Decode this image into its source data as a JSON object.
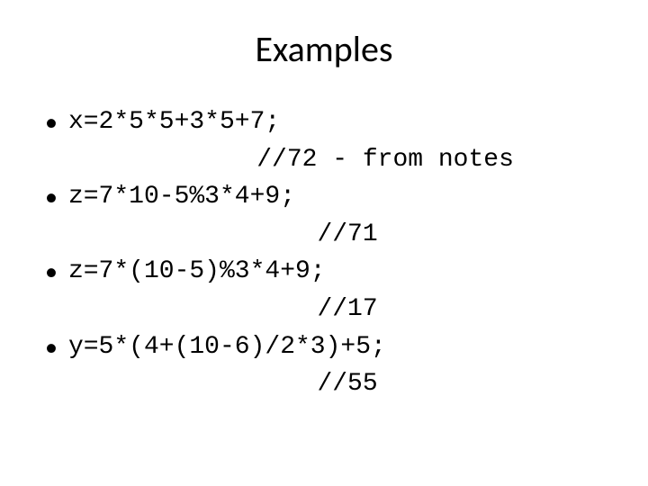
{
  "title": "Examples",
  "items": [
    {
      "expression": "x=2*5*5+3*5+7;",
      "comment": "              //72 - from notes"
    },
    {
      "expression": "z=7*10-5%3*4+9;",
      "comment": "                  //71"
    },
    {
      "expression": "z=7*(10-5)%3*4+9;",
      "comment": "                  //17"
    },
    {
      "expression": "y=5*(4+(10-6)/2*3)+5;",
      "comment": "                  //55"
    }
  ],
  "colors": {
    "background": "#ffffff",
    "text": "#000000"
  },
  "typography": {
    "title_font": "Calibri",
    "title_size": 40,
    "code_font": "Courier New",
    "code_size": 28
  }
}
